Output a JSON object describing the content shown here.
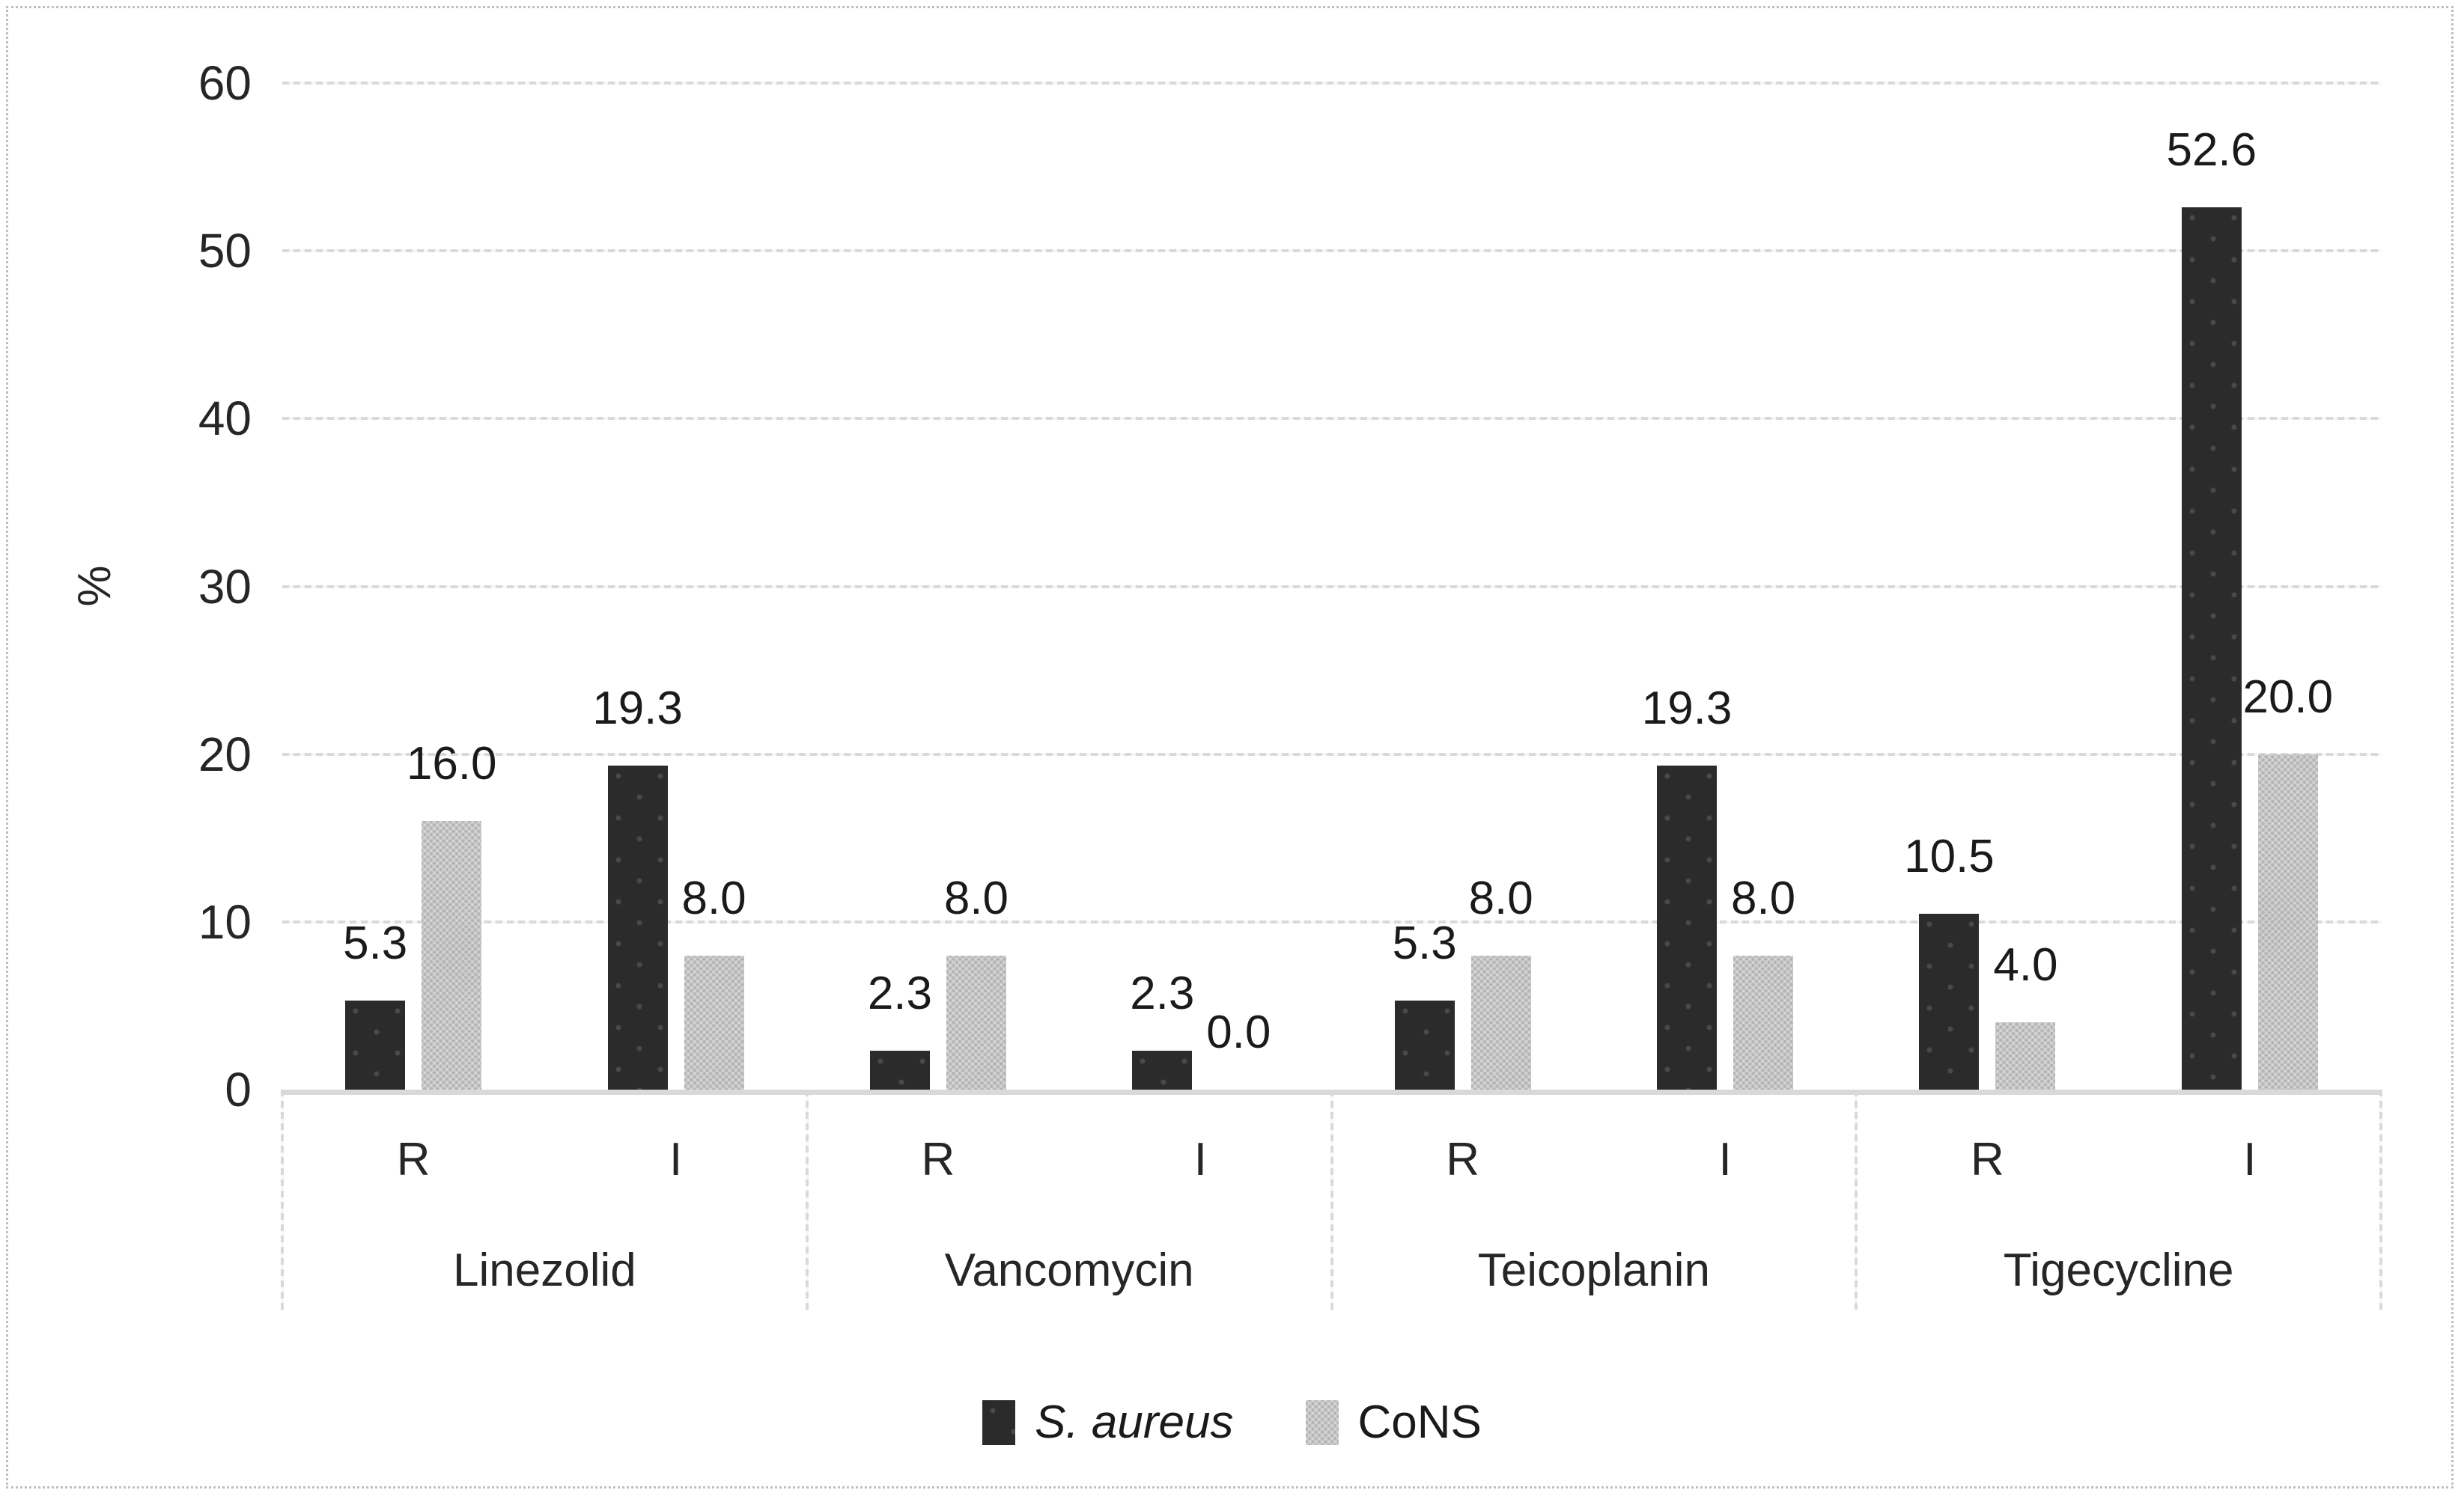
{
  "chart_data": {
    "type": "bar",
    "title": "",
    "xlabel": "",
    "ylabel": "%",
    "ylim": [
      0,
      60
    ],
    "yticks": [
      0,
      10,
      20,
      30,
      40,
      50,
      60
    ],
    "grid": true,
    "legend_position": "bottom",
    "series": [
      {
        "name": "S. aureus",
        "color": "#2b2b2b",
        "pattern": "dots",
        "italic": true
      },
      {
        "name": "CoNS",
        "color": "#b5b5b5",
        "pattern": "crosshatch",
        "italic": false
      }
    ],
    "groups": [
      {
        "label": "Linezolid",
        "slots": [
          {
            "label": "R",
            "values": [
              5.3,
              16.0
            ]
          },
          {
            "label": "I",
            "values": [
              19.3,
              8.0
            ]
          }
        ]
      },
      {
        "label": "Vancomycin",
        "slots": [
          {
            "label": "R",
            "values": [
              2.3,
              8.0
            ]
          },
          {
            "label": "I",
            "values": [
              2.3,
              0.0
            ]
          }
        ]
      },
      {
        "label": "Teicoplanin",
        "slots": [
          {
            "label": "R",
            "values": [
              5.3,
              8.0
            ]
          },
          {
            "label": "I",
            "values": [
              19.3,
              8.0
            ]
          }
        ]
      },
      {
        "label": "Tigecycline",
        "slots": [
          {
            "label": "R",
            "values": [
              10.5,
              4.0
            ]
          },
          {
            "label": "I",
            "values": [
              52.6,
              20.0
            ]
          }
        ]
      }
    ],
    "colors": {
      "gridline": "#d9d9d9",
      "axis_line": "#d9d9d9",
      "text": "#1f1f1f",
      "border": "#bfbfbf"
    }
  }
}
